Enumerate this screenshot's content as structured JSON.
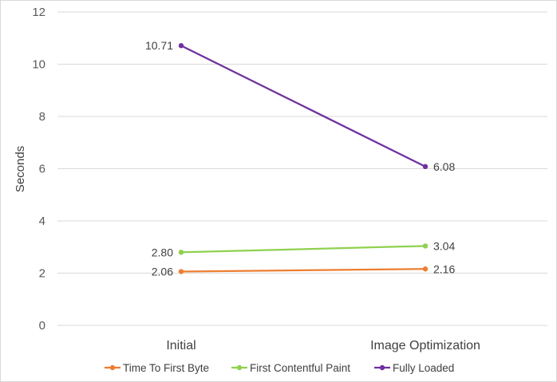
{
  "chart_data": {
    "type": "line",
    "categories": [
      "Initial",
      "Image Optimization"
    ],
    "ylabel": "Seconds",
    "ylim": [
      0,
      12
    ],
    "yticks": [
      0,
      2,
      4,
      6,
      8,
      10,
      12
    ],
    "grid": true,
    "legend_position": "bottom",
    "series": [
      {
        "name": "Time To First Byte",
        "values": [
          2.06,
          2.16
        ],
        "labels": [
          "2.06",
          "2.16"
        ],
        "color": "#ED7D31"
      },
      {
        "name": "First Contentful Paint",
        "values": [
          2.8,
          3.04
        ],
        "labels": [
          "2.80",
          "3.04"
        ],
        "color": "#8FD14F"
      },
      {
        "name": "Fully Loaded",
        "values": [
          10.71,
          6.08
        ],
        "labels": [
          "10.71",
          "6.08"
        ],
        "color": "#7030A0"
      }
    ]
  }
}
